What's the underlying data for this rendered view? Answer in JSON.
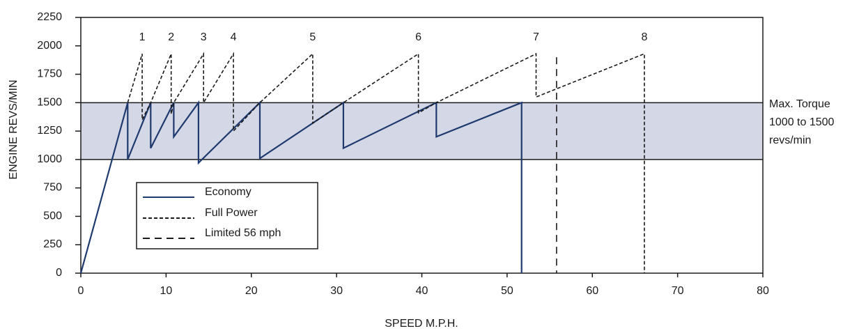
{
  "chart_data": {
    "type": "line",
    "xlabel": "SPEED M.P.H.",
    "ylabel": "ENGINE REVS/MIN",
    "xlim": [
      0,
      80
    ],
    "ylim": [
      0,
      2250
    ],
    "x_ticks": [
      0,
      10,
      20,
      30,
      40,
      50,
      60,
      70,
      80
    ],
    "y_ticks": [
      0,
      250,
      500,
      750,
      1000,
      1250,
      1500,
      1750,
      2000,
      2250
    ],
    "grid": false,
    "band": {
      "from": 1000,
      "to": 1500,
      "color": "#d3d7e6"
    },
    "annotation_lines": [
      "Max. Torque",
      "1000 to 1500",
      "revs/min"
    ],
    "colors": {
      "economy": "#1f3a6e",
      "dashed": "#1a1a1a",
      "axis": "#1a1a1a"
    },
    "legend": {
      "position": "lower-left",
      "entries": [
        {
          "label": "Economy",
          "style": "solid"
        },
        {
          "label": "Full Power",
          "style": "short-dash"
        },
        {
          "label": "Limited 56 mph",
          "style": "long-dash"
        }
      ]
    },
    "gear_labels": [
      {
        "text": "1",
        "x": 7.2
      },
      {
        "text": "2",
        "x": 10.6
      },
      {
        "text": "3",
        "x": 14.4
      },
      {
        "text": "4",
        "x": 17.9
      },
      {
        "text": "5",
        "x": 27.2
      },
      {
        "text": "6",
        "x": 39.6
      },
      {
        "text": "7",
        "x": 53.4
      },
      {
        "text": "8",
        "x": 66.1
      }
    ],
    "series": [
      {
        "name": "Economy",
        "style": "solid",
        "points": [
          [
            0,
            0
          ],
          [
            5.5,
            1500
          ],
          [
            5.5,
            1000
          ],
          [
            8.2,
            1500
          ],
          [
            8.2,
            1100
          ],
          [
            10.9,
            1500
          ],
          [
            10.9,
            1200
          ],
          [
            13.8,
            1500
          ],
          [
            13.8,
            970
          ],
          [
            21.0,
            1500
          ],
          [
            21.0,
            1010
          ],
          [
            30.8,
            1500
          ],
          [
            30.8,
            1100
          ],
          [
            41.7,
            1500
          ],
          [
            41.7,
            1200
          ],
          [
            51.7,
            1500
          ],
          [
            51.7,
            0
          ]
        ]
      },
      {
        "name": "Full Power",
        "style": "short-dash",
        "points": [
          [
            5.5,
            1500
          ],
          [
            7.2,
            1930
          ],
          [
            7.2,
            1350
          ],
          [
            8.2,
            1500
          ],
          [
            10.6,
            1930
          ],
          [
            10.6,
            1400
          ],
          [
            10.9,
            1500
          ],
          [
            14.4,
            1930
          ],
          [
            14.4,
            1500
          ],
          [
            17.9,
            1930
          ],
          [
            17.9,
            1250
          ],
          [
            21.0,
            1500
          ],
          [
            27.2,
            1930
          ],
          [
            27.2,
            1320
          ],
          [
            30.8,
            1500
          ],
          [
            39.6,
            1930
          ],
          [
            39.6,
            1410
          ],
          [
            41.7,
            1500
          ],
          [
            53.4,
            1930
          ],
          [
            53.4,
            1550
          ],
          [
            66.1,
            1930
          ],
          [
            66.1,
            0
          ]
        ]
      },
      {
        "name": "Limited 56 mph",
        "style": "long-dash",
        "points": [
          [
            55.8,
            1900
          ],
          [
            55.8,
            0
          ]
        ]
      }
    ]
  }
}
